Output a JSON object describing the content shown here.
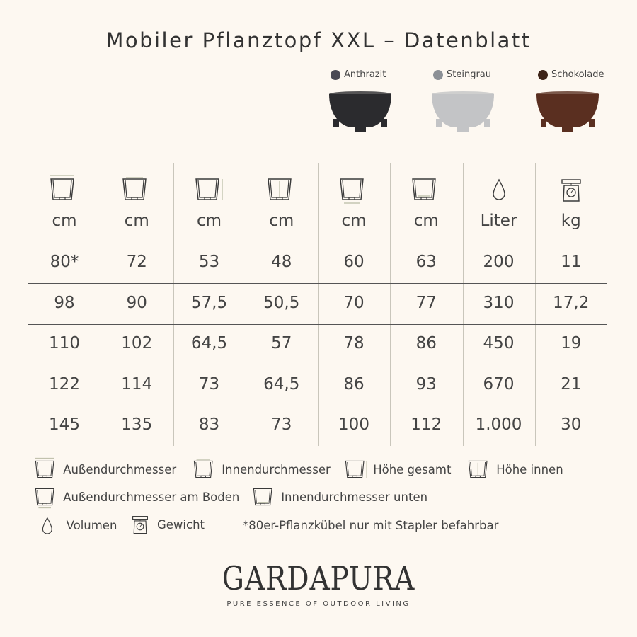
{
  "title": "Mobiler Pflanztopf XXL – Datenblatt",
  "variants": [
    {
      "name": "Anthrazit",
      "color": "#4a4a55",
      "pot_color": "#2b2b2e"
    },
    {
      "name": "Steingrau",
      "color": "#8c9096",
      "pot_color": "#c3c4c6"
    },
    {
      "name": "Schokolade",
      "color": "#3e2418",
      "pot_color": "#5a2f20"
    }
  ],
  "columns": [
    {
      "icon": "pot-outer-diameter-icon",
      "unit": "cm"
    },
    {
      "icon": "pot-inner-diameter-icon",
      "unit": "cm"
    },
    {
      "icon": "pot-total-height-icon",
      "unit": "cm"
    },
    {
      "icon": "pot-inner-height-icon",
      "unit": "cm"
    },
    {
      "icon": "pot-outer-bottom-diameter-icon",
      "unit": "cm"
    },
    {
      "icon": "pot-inner-bottom-diameter-icon",
      "unit": "cm"
    },
    {
      "icon": "drop-icon",
      "unit": "Liter"
    },
    {
      "icon": "scale-icon",
      "unit": "kg"
    }
  ],
  "rows": [
    [
      "80*",
      "72",
      "53",
      "48",
      "60",
      "63",
      "200",
      "11"
    ],
    [
      "98",
      "90",
      "57,5",
      "50,5",
      "70",
      "77",
      "310",
      "17,2"
    ],
    [
      "110",
      "102",
      "64,5",
      "57",
      "78",
      "86",
      "450",
      "19"
    ],
    [
      "122",
      "114",
      "73",
      "64,5",
      "86",
      "93",
      "670",
      "21"
    ],
    [
      "145",
      "135",
      "83",
      "73",
      "100",
      "112",
      "1.000",
      "30"
    ]
  ],
  "legend": {
    "outer_diameter": "Außendurchmesser",
    "inner_diameter": "Innendurchmesser",
    "total_height": "Höhe gesamt",
    "inner_height": "Höhe innen",
    "outer_bottom": "Außendurchmesser am Boden",
    "inner_bottom": "Innendurchmesser unten",
    "volume": "Volumen",
    "weight": "Gewicht",
    "footnote": "*80er-Pflanzkübel nur mit Stapler befahrbar"
  },
  "brand": {
    "name": "GARDAPURA",
    "tagline": "PURE ESSENCE OF OUTDOOR LIVING"
  }
}
